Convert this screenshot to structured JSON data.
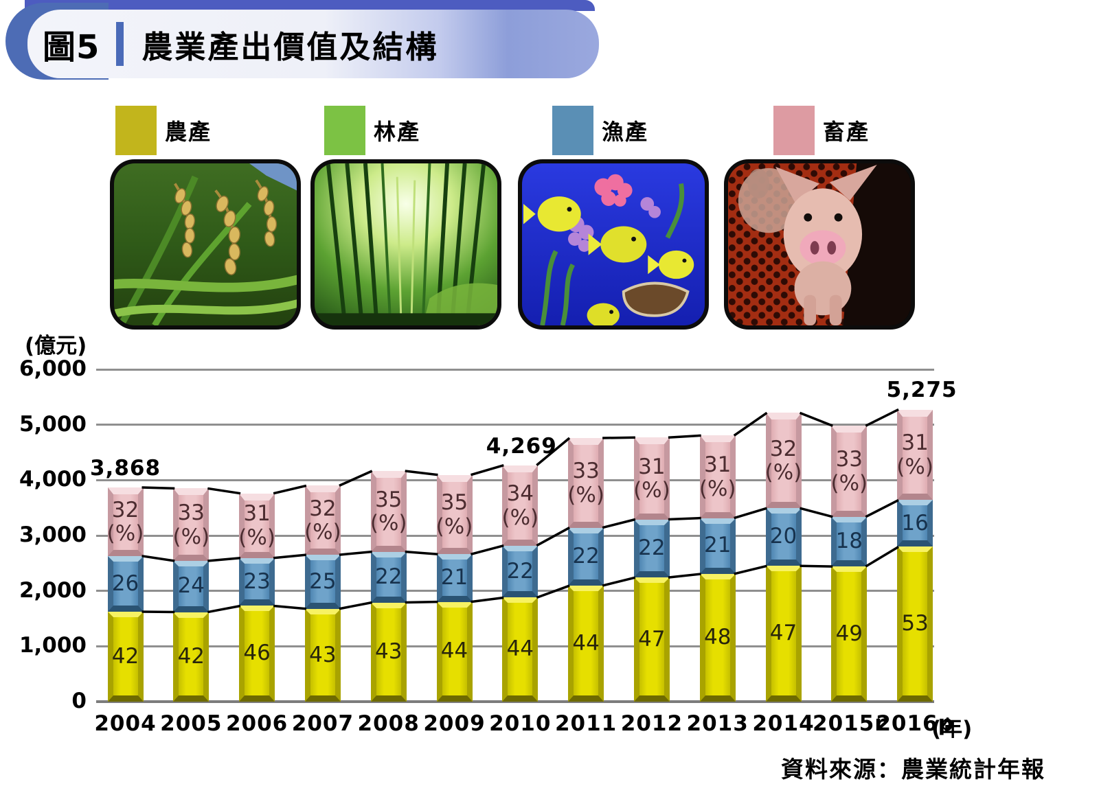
{
  "header": {
    "figure_label": "圖5",
    "title": "農業產出價值及結構"
  },
  "legend": [
    {
      "label": "農產",
      "color": "#c2b51c",
      "photo": "rice-field"
    },
    {
      "label": "林產",
      "color": "#7cc244",
      "photo": "bamboo-forest"
    },
    {
      "label": "漁產",
      "color": "#5a8fb5",
      "photo": "tropical-fish"
    },
    {
      "label": "畜產",
      "color": "#dd9ba2",
      "photo": "piglet"
    }
  ],
  "chart_data": {
    "type": "bar",
    "stacked": true,
    "title": "農業產出價值及結構",
    "unit_label": "(億元)",
    "x_axis_suffix": "(年)",
    "percent_suffix": "(%)",
    "grid": true,
    "ylim": [
      0,
      6000
    ],
    "ytick_labels": [
      "0",
      "1,000",
      "2,000",
      "3,000",
      "4,000",
      "5,000",
      "6,000"
    ],
    "categories": [
      "2004",
      "2005",
      "2006",
      "2007",
      "2008",
      "2009",
      "2010",
      "2011",
      "2012",
      "2013",
      "2014",
      "2015r",
      "2016p"
    ],
    "series": [
      {
        "name": "農產",
        "color": "#e0d900",
        "percentages": [
          42,
          42,
          46,
          43,
          43,
          44,
          44,
          44,
          47,
          48,
          47,
          49,
          53
        ]
      },
      {
        "name": "漁產",
        "color": "#6297c1",
        "percentages": [
          26,
          24,
          23,
          25,
          22,
          21,
          22,
          22,
          22,
          21,
          20,
          18,
          16
        ]
      },
      {
        "name": "畜產",
        "color": "#edc5c9",
        "percentages": [
          32,
          33,
          31,
          32,
          35,
          35,
          34,
          33,
          31,
          31,
          32,
          33,
          31
        ]
      }
    ],
    "totals_estimated": [
      3868,
      3850,
      3760,
      3900,
      4165,
      4095,
      4269,
      4760,
      4770,
      4805,
      5215,
      4980,
      5275
    ],
    "total_annotations": [
      {
        "index": 0,
        "text": "3,868",
        "dx": 0
      },
      {
        "index": 6,
        "text": "4,269",
        "dx": 2
      },
      {
        "index": 12,
        "text": "5,275",
        "dx": 10
      }
    ],
    "connector_lines": "black lines join segment boundaries of adjacent bars"
  },
  "source": "資料來源：農業統計年報"
}
